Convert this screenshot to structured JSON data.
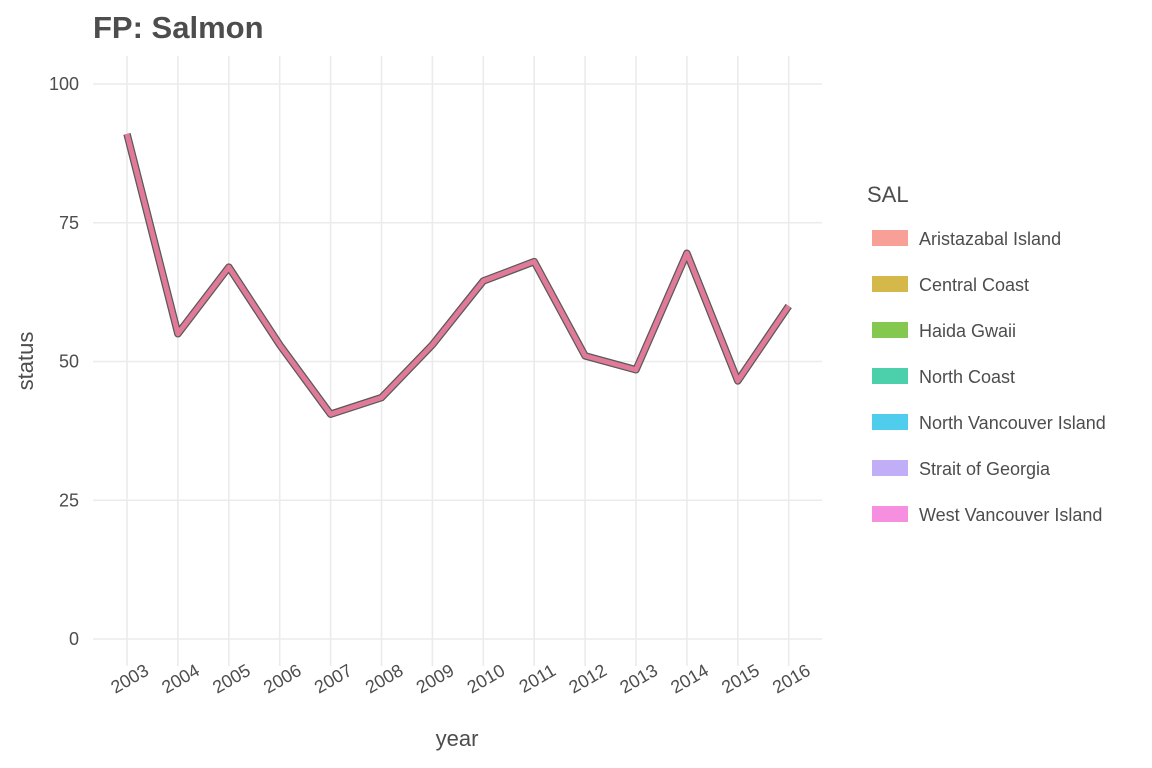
{
  "chart_data": {
    "type": "line",
    "title": "FP: Salmon",
    "xlabel": "year",
    "ylabel": "status",
    "x": [
      "2003",
      "2004",
      "2005",
      "2006",
      "2007",
      "2008",
      "2009",
      "2010",
      "2011",
      "2012",
      "2013",
      "2014",
      "2015",
      "2016"
    ],
    "series": [
      {
        "values": [
          91,
          55,
          67,
          53,
          40.5,
          43.5,
          53,
          64.5,
          68,
          51,
          48.5,
          69.5,
          46.5,
          60
        ],
        "color": "#e07a98",
        "outline": "#595959"
      }
    ],
    "ylim": [
      0,
      100
    ],
    "yticks": [
      0,
      25,
      50,
      75,
      100
    ],
    "grid": true,
    "legend": {
      "title": "SAL",
      "position": "right",
      "items": [
        {
          "label": "Aristazabal Island",
          "color": "#f8a097"
        },
        {
          "label": "Central Coast",
          "color": "#d4b84a"
        },
        {
          "label": "Haida Gwaii",
          "color": "#84c84f"
        },
        {
          "label": "North Coast",
          "color": "#4ccfab"
        },
        {
          "label": "North Vancouver Island",
          "color": "#4fcdec"
        },
        {
          "label": "Strait of Georgia",
          "color": "#c0aff7"
        },
        {
          "label": "West Vancouver Island",
          "color": "#f78fe0"
        }
      ]
    }
  }
}
